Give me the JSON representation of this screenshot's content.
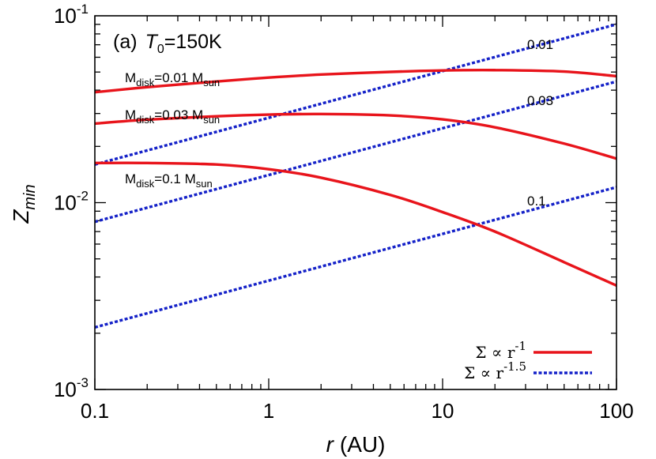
{
  "chart_data": {
    "type": "line",
    "panel_label": "(a)",
    "panel_var": "T",
    "panel_sub": "0",
    "panel_value": "=150K",
    "xlabel": "r",
    "xlabel_unit": "(AU)",
    "ylabel": "Z",
    "ylabel_sub": "min",
    "xscale": "log",
    "yscale": "log",
    "xlim": [
      0.1,
      100
    ],
    "ylim": [
      0.001,
      0.1
    ],
    "x_ticks": [
      {
        "value": 0.1,
        "label": "0.1"
      },
      {
        "value": 1,
        "label": "1"
      },
      {
        "value": 10,
        "label": "10"
      },
      {
        "value": 100,
        "label": "100"
      }
    ],
    "y_ticks": [
      {
        "value": 0.001,
        "base": "10",
        "exp": "-3"
      },
      {
        "value": 0.01,
        "base": "10",
        "exp": "-2"
      },
      {
        "value": 0.1,
        "base": "10",
        "exp": "-1"
      }
    ],
    "series_solid": [
      {
        "label_main": "M",
        "label_sub": "disk",
        "label_mid": "=0.01 M",
        "label_sub2": "sun",
        "x": [
          0.1,
          0.2,
          0.5,
          1,
          2,
          5,
          10,
          20,
          50,
          100
        ],
        "y": [
          0.039,
          0.0415,
          0.0445,
          0.0467,
          0.0485,
          0.0501,
          0.051,
          0.0512,
          0.0503,
          0.0475
        ]
      },
      {
        "label_main": "M",
        "label_sub": "disk",
        "label_mid": "=0.03 M",
        "label_sub2": "sun",
        "x": [
          0.1,
          0.2,
          0.5,
          1,
          2,
          5,
          10,
          20,
          50,
          100
        ],
        "y": [
          0.0265,
          0.0278,
          0.029,
          0.0296,
          0.0298,
          0.0293,
          0.0279,
          0.0253,
          0.0207,
          0.0172
        ]
      },
      {
        "label_main": "M",
        "label_sub": "disk",
        "label_mid": "=0.1 M",
        "label_sub2": "sun",
        "x": [
          0.1,
          0.2,
          0.5,
          1,
          2,
          5,
          10,
          20,
          50,
          100
        ],
        "y": [
          0.0163,
          0.0163,
          0.016,
          0.0151,
          0.0136,
          0.011,
          0.0089,
          0.007,
          0.0048,
          0.0036
        ]
      }
    ],
    "series_dashed": [
      {
        "label": "0.01",
        "x": [
          0.1,
          100
        ],
        "y": [
          0.016,
          0.09
        ]
      },
      {
        "label": "0.03",
        "x": [
          0.1,
          100
        ],
        "y": [
          0.0079,
          0.0445
        ]
      },
      {
        "label": "0.1",
        "x": [
          0.1,
          100
        ],
        "y": [
          0.00215,
          0.0121
        ]
      }
    ],
    "legend": [
      {
        "text_sym": "Σ ∝ r",
        "text_exp": "-1",
        "style": "solid"
      },
      {
        "text_sym": "Σ ∝ r",
        "text_exp": "-1.5",
        "style": "dashed"
      }
    ],
    "legend_position": "bottom-right",
    "colors": {
      "solid": "#e8141b",
      "dashed": "#1421c8",
      "axis": "#000000"
    }
  }
}
